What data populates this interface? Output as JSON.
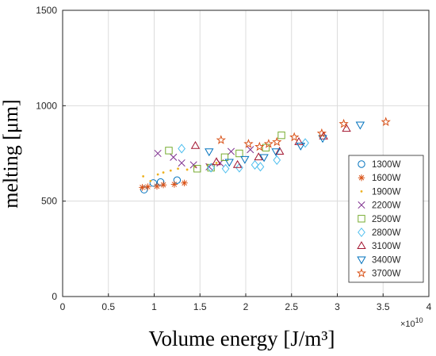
{
  "chart_data": {
    "type": "scatter",
    "ylabel": "melting [μm]",
    "xlabel": "Volume energy [J/m³]",
    "x_exponent": "×10",
    "x_exponent_power": "10",
    "xlim": [
      0,
      4
    ],
    "ylim": [
      0,
      1500
    ],
    "xticks": [
      0,
      0.5,
      1,
      1.5,
      2,
      2.5,
      3,
      3.5,
      4
    ],
    "xtick_labels": [
      "0",
      "0.5",
      "1",
      "1.5",
      "2",
      "2.5",
      "3",
      "3.5",
      "4"
    ],
    "yticks": [
      0,
      500,
      1000,
      1500
    ],
    "ytick_labels": [
      "0",
      "500",
      "1000",
      "1500"
    ],
    "grid": true,
    "legend_position": "right",
    "series": [
      {
        "name": "1300W",
        "marker": "circle",
        "color": "#0072bd",
        "points": [
          [
            0.89,
            560
          ],
          [
            0.99,
            595
          ],
          [
            1.07,
            600
          ],
          [
            1.25,
            610
          ]
        ]
      },
      {
        "name": "1600W",
        "marker": "asterisk",
        "color": "#d95319",
        "points": [
          [
            0.87,
            572
          ],
          [
            0.93,
            575
          ],
          [
            1.03,
            578
          ],
          [
            1.1,
            585
          ],
          [
            1.22,
            588
          ],
          [
            1.33,
            595
          ]
        ]
      },
      {
        "name": "1900W",
        "marker": "dot",
        "color": "#edb120",
        "points": [
          [
            0.88,
            630
          ],
          [
            0.96,
            605
          ],
          [
            1.04,
            640
          ],
          [
            1.1,
            650
          ],
          [
            1.18,
            660
          ],
          [
            1.26,
            670
          ],
          [
            1.36,
            665
          ],
          [
            1.45,
            680
          ],
          [
            1.58,
            690
          ],
          [
            1.68,
            700
          ]
        ]
      },
      {
        "name": "2200W",
        "marker": "x",
        "color": "#7e2f8e",
        "points": [
          [
            1.04,
            750
          ],
          [
            1.21,
            730
          ],
          [
            1.3,
            700
          ],
          [
            1.43,
            690
          ],
          [
            1.6,
            680
          ],
          [
            1.72,
            700
          ],
          [
            1.84,
            760
          ],
          [
            2.05,
            770
          ]
        ]
      },
      {
        "name": "2500W",
        "marker": "square",
        "color": "#77ac30",
        "points": [
          [
            1.16,
            765
          ],
          [
            1.47,
            670
          ],
          [
            1.62,
            675
          ],
          [
            1.77,
            730
          ],
          [
            1.93,
            750
          ],
          [
            2.22,
            780
          ],
          [
            2.39,
            845
          ]
        ]
      },
      {
        "name": "2800W",
        "marker": "diamond",
        "color": "#4dbeee",
        "points": [
          [
            1.3,
            775
          ],
          [
            1.62,
            675
          ],
          [
            1.78,
            670
          ],
          [
            1.93,
            675
          ],
          [
            2.1,
            690
          ],
          [
            2.16,
            680
          ],
          [
            2.34,
            715
          ],
          [
            2.65,
            805
          ]
        ]
      },
      {
        "name": "3100W",
        "marker": "triangle-up",
        "color": "#a2142f",
        "points": [
          [
            1.45,
            790
          ],
          [
            1.68,
            705
          ],
          [
            1.91,
            690
          ],
          [
            2.14,
            730
          ],
          [
            2.37,
            760
          ],
          [
            2.58,
            810
          ],
          [
            2.85,
            840
          ],
          [
            3.1,
            880
          ]
        ]
      },
      {
        "name": "3400W",
        "marker": "triangle-down",
        "color": "#0072bd",
        "points": [
          [
            1.6,
            760
          ],
          [
            1.82,
            705
          ],
          [
            1.99,
            720
          ],
          [
            2.2,
            730
          ],
          [
            2.33,
            760
          ],
          [
            2.6,
            790
          ],
          [
            2.84,
            830
          ],
          [
            3.25,
            900
          ]
        ]
      },
      {
        "name": "3700W",
        "marker": "pentagram",
        "color": "#d95319",
        "points": [
          [
            1.73,
            820
          ],
          [
            2.03,
            800
          ],
          [
            2.15,
            785
          ],
          [
            2.25,
            800
          ],
          [
            2.34,
            810
          ],
          [
            2.53,
            835
          ],
          [
            2.83,
            855
          ],
          [
            3.07,
            905
          ],
          [
            3.53,
            915
          ]
        ]
      }
    ]
  }
}
